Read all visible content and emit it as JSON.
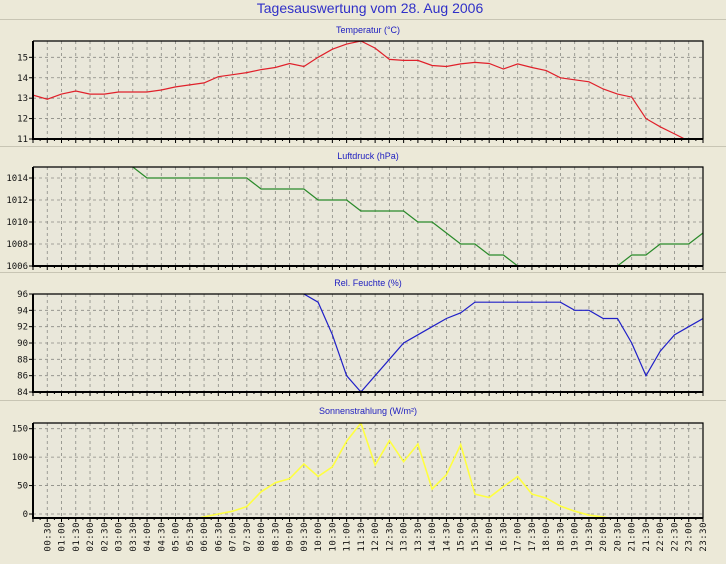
{
  "title": "Tagesauswertung vom 28. Aug 2006",
  "x_tick_labels": [
    "00:30",
    "01:00",
    "01:30",
    "02:00",
    "02:30",
    "03:00",
    "03:30",
    "04:00",
    "04:30",
    "05:00",
    "05:30",
    "06:00",
    "06:30",
    "07:00",
    "07:30",
    "08:00",
    "08:30",
    "09:00",
    "09:30",
    "10:00",
    "10:30",
    "11:00",
    "11:30",
    "12:00",
    "12:30",
    "13:00",
    "13:30",
    "14:00",
    "14:30",
    "15:00",
    "15:30",
    "16:00",
    "16:30",
    "17:00",
    "17:30",
    "18:00",
    "18:30",
    "19:00",
    "19:30",
    "20:00",
    "20:30",
    "21:00",
    "21:30",
    "22:00",
    "22:30",
    "23:00",
    "23:30"
  ],
  "chart_data": [
    {
      "type": "line",
      "title": "Temperatur (°C)",
      "color": "#e0202a",
      "x_range": [
        "00:00",
        "24:00"
      ],
      "ylim": [
        11,
        15.8
      ],
      "yticks": [
        11,
        12,
        13,
        14,
        15
      ],
      "grid": true,
      "values": [
        13.15,
        12.95,
        13.2,
        13.35,
        13.2,
        13.2,
        13.3,
        13.3,
        13.3,
        13.4,
        13.55,
        13.65,
        13.75,
        14.05,
        14.15,
        14.25,
        14.4,
        14.5,
        14.7,
        14.55,
        15.0,
        15.4,
        15.65,
        15.8,
        15.45,
        14.9,
        14.85,
        14.85,
        14.6,
        14.55,
        14.68,
        14.75,
        14.7,
        14.43,
        14.68,
        14.5,
        14.35,
        14.0,
        13.9,
        13.8,
        13.45,
        13.2,
        13.05,
        12.0,
        11.6,
        11.25,
        10.9,
        10.6
      ]
    },
    {
      "type": "line",
      "title": "Luftdruck (hPa)",
      "color": "#2a8a2a",
      "x_range": [
        "00:00",
        "24:00"
      ],
      "ylim": [
        1006,
        1015
      ],
      "yticks": [
        1006,
        1008,
        1010,
        1012,
        1014
      ],
      "grid": true,
      "values": [
        1016,
        1016,
        1016,
        1016,
        1016,
        1016,
        1016,
        1015,
        1014,
        1014,
        1014,
        1014,
        1014,
        1014,
        1014,
        1014,
        1013,
        1013,
        1013,
        1013,
        1012,
        1012,
        1012,
        1011,
        1011,
        1011,
        1011,
        1010,
        1010,
        1009,
        1008,
        1008,
        1007,
        1007,
        1006,
        1005,
        1005,
        1005,
        1005,
        1005,
        1005,
        1006,
        1007,
        1007,
        1008,
        1008,
        1008,
        1009
      ]
    },
    {
      "type": "line",
      "title": "Rel. Feuchte (%)",
      "color": "#2020c8",
      "x_range": [
        "00:00",
        "24:00"
      ],
      "ylim": [
        84,
        96
      ],
      "yticks": [
        84,
        86,
        88,
        90,
        92,
        94,
        96
      ],
      "grid": true,
      "values": [
        97,
        97,
        97,
        97,
        97,
        97,
        97,
        97,
        97,
        97,
        97,
        97,
        97,
        97,
        97,
        97,
        97,
        97,
        97,
        96,
        95,
        91,
        86,
        84,
        86,
        88,
        90,
        91,
        92,
        93,
        93.7,
        95,
        95,
        95,
        95,
        95,
        95,
        95,
        94,
        94,
        93,
        93,
        90,
        86,
        89,
        91,
        92,
        93
      ]
    },
    {
      "type": "line",
      "title": "Sonnenstrahlung (W/m²)",
      "color": "#ffff40",
      "x_range": [
        "00:00",
        "24:00"
      ],
      "ylim": [
        -7,
        160
      ],
      "yticks": [
        0,
        50,
        100,
        150
      ],
      "grid": true,
      "values": [
        -10,
        -10,
        -10,
        -10,
        -10,
        -10,
        -10,
        -10,
        -10,
        -10,
        -10,
        -10,
        -5,
        0,
        5,
        13,
        39,
        55,
        62,
        88,
        66,
        83,
        128,
        160,
        86,
        129,
        92,
        123,
        44,
        69,
        122,
        35,
        29,
        48,
        66,
        35,
        28,
        14,
        5,
        -2,
        -5,
        -10,
        -10,
        -10,
        -10,
        -10,
        -10,
        -10
      ]
    }
  ]
}
